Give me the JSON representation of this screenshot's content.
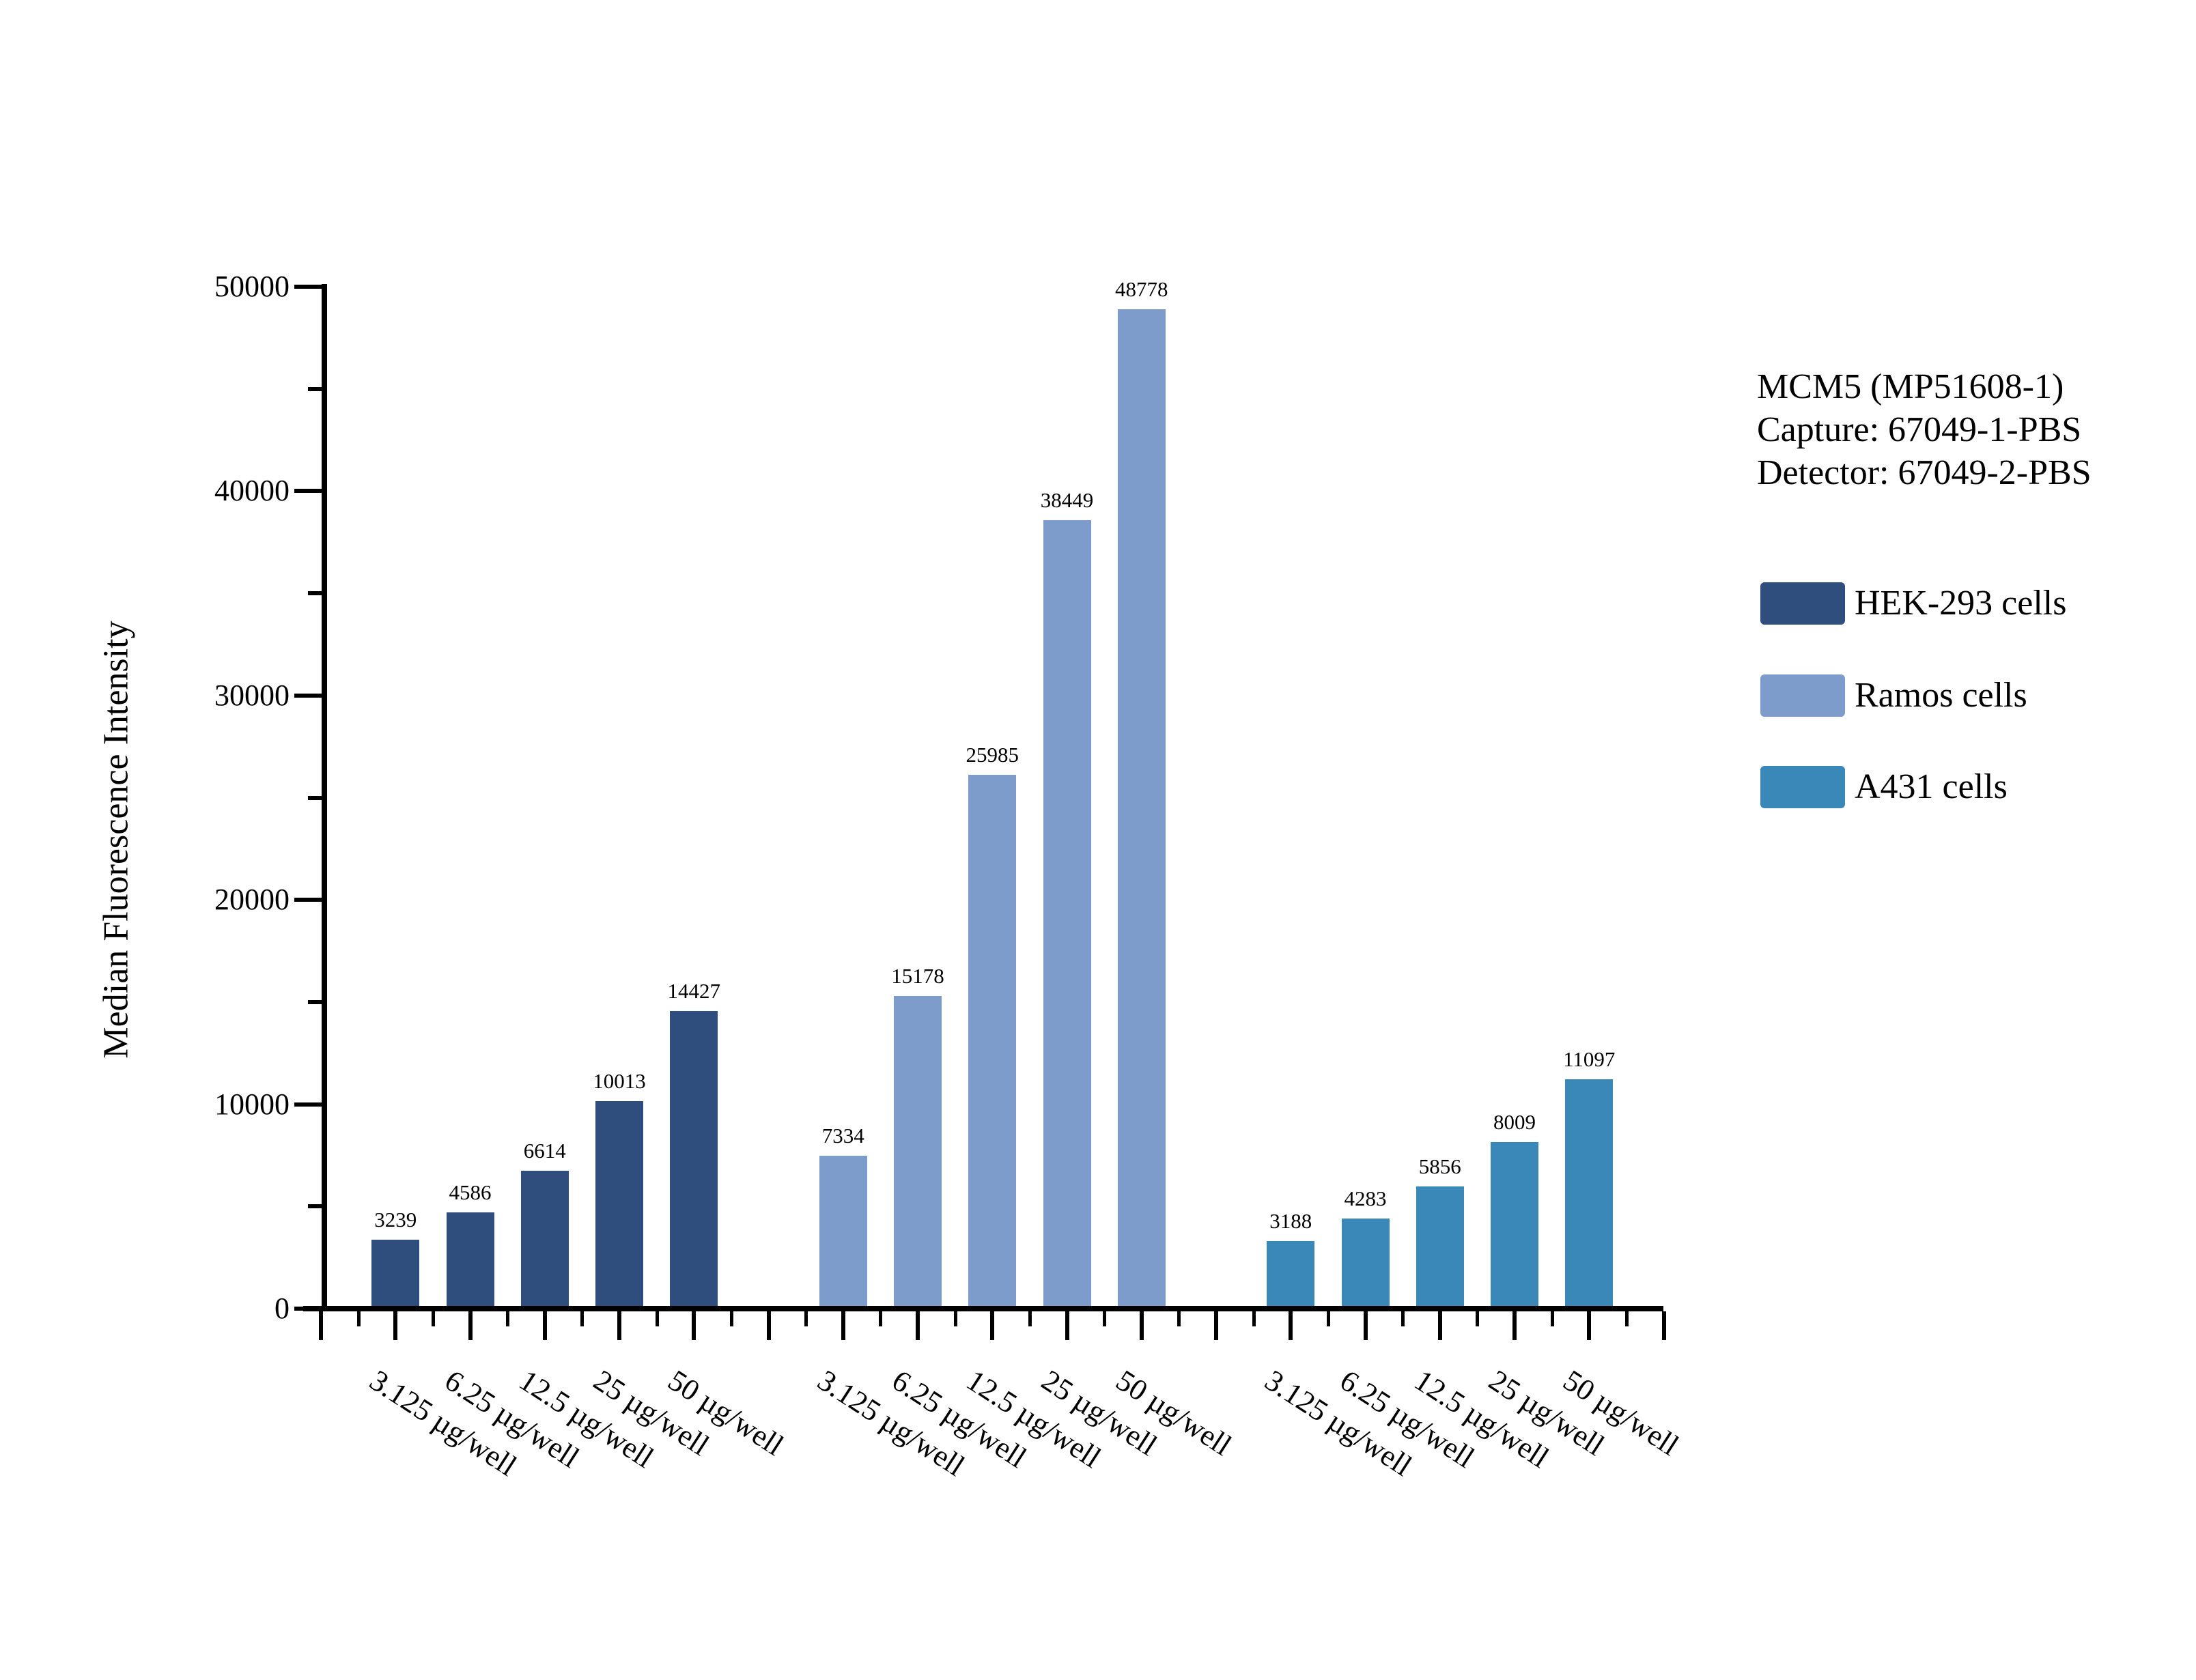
{
  "page": {
    "background": "#ffffff"
  },
  "y_axis": {
    "label": "Median Fluorescence Intensity",
    "tick_labels": [
      "0",
      "10000",
      "20000",
      "30000",
      "40000",
      "50000"
    ]
  },
  "x_axis": {
    "tick_labels": [
      "3.125 µg/well",
      "6.25 µg/well",
      "12.5 µg/well",
      "25 µg/well",
      "50 µg/well"
    ]
  },
  "annotation": {
    "line1": "MCM5 (MP51608-1)",
    "line2": "Capture: 67049-1-PBS",
    "line3": "Detector: 67049-2-PBS"
  },
  "legend": {
    "items": [
      {
        "label": "HEK-293 cells",
        "color": "#2F4E7D"
      },
      {
        "label": "Ramos cells",
        "color": "#7D9CCB"
      },
      {
        "label": "A431 cells",
        "color": "#3A88B7"
      }
    ]
  },
  "chart_data": {
    "type": "bar",
    "categories": [
      "3.125 µg/well",
      "6.25 µg/well",
      "12.5 µg/well",
      "25 µg/well",
      "50 µg/well"
    ],
    "series": [
      {
        "name": "HEK-293 cells",
        "color": "#2F4E7D",
        "values": [
          3239,
          4586,
          6614,
          10013,
          14427
        ]
      },
      {
        "name": "Ramos cells",
        "color": "#7D9CCB",
        "values": [
          7334,
          15178,
          25985,
          38449,
          48778
        ]
      },
      {
        "name": "A431 cells",
        "color": "#3A88B7",
        "values": [
          3188,
          4283,
          5856,
          8009,
          11097
        ]
      }
    ],
    "title": "MCM5 (MP51608-1) / Capture: 67049-1-PBS / Detector: 67049-2-PBS",
    "xlabel": "",
    "ylabel": "Median Fluorescence Intensity",
    "ylim": [
      0,
      50000
    ],
    "y_major_step": 10000,
    "y_minor_step": 5000,
    "bar_value_labels": true,
    "grid": false,
    "legend_position": "right"
  }
}
